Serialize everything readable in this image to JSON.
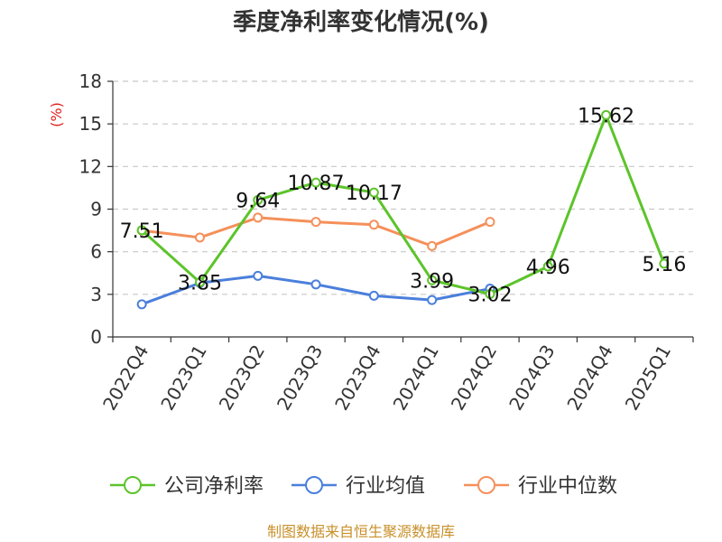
{
  "chart_data": {
    "type": "line",
    "title": "季度净利率变化情况(%)",
    "ylabel": "(%)",
    "categories": [
      "2022Q4",
      "2023Q1",
      "2023Q2",
      "2023Q3",
      "2023Q4",
      "2024Q1",
      "2024Q2",
      "2024Q3",
      "2024Q4",
      "2025Q1"
    ],
    "ylim": [
      0,
      18
    ],
    "yticks": [
      0,
      3,
      6,
      9,
      12,
      15,
      18
    ],
    "grid": true,
    "legend_position": "bottom",
    "series": [
      {
        "name": "公司净利率",
        "color": "#5cc42a",
        "values": [
          7.51,
          3.85,
          9.64,
          10.87,
          10.17,
          3.99,
          3.02,
          4.96,
          15.62,
          5.16
        ],
        "labels": [
          "7.51",
          "3.85",
          "9.64",
          "10.87",
          "10.17",
          "3.99",
          "3.02",
          "4.96",
          "15.62",
          "5.16"
        ]
      },
      {
        "name": "行业均值",
        "color": "#4a7fdc",
        "values": [
          2.3,
          3.8,
          4.3,
          3.7,
          2.9,
          2.6,
          3.4,
          null,
          null,
          null
        ]
      },
      {
        "name": "行业中位数",
        "color": "#f5905a",
        "values": [
          7.5,
          7.0,
          8.4,
          8.1,
          7.9,
          6.4,
          8.1,
          null,
          null,
          null
        ]
      }
    ]
  },
  "source": "制图数据来自恒生聚源数据库"
}
